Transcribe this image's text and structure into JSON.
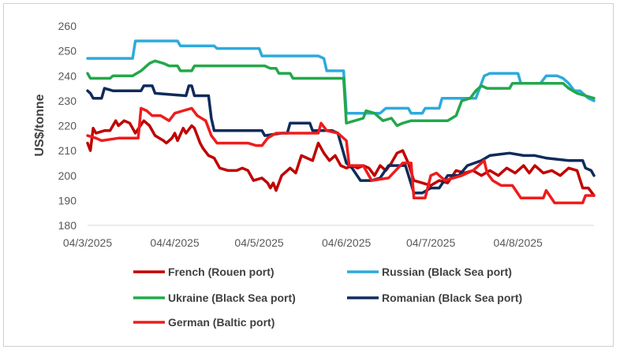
{
  "chart_data": {
    "type": "line",
    "ylabel": "US$/tonne",
    "xlabel": "",
    "title": "",
    "ylim": [
      180,
      260
    ],
    "y_ticks": [
      180,
      190,
      200,
      210,
      220,
      230,
      240,
      250,
      260
    ],
    "x_range": [
      "2025-03-04",
      "2025-08-31"
    ],
    "x_ticks": [
      {
        "date": "2025-03-04",
        "label": "04/3/2025"
      },
      {
        "date": "2025-04-04",
        "label": "04/4/2025"
      },
      {
        "date": "2025-05-04",
        "label": "04/5/2025"
      },
      {
        "date": "2025-06-04",
        "label": "04/6/2025"
      },
      {
        "date": "2025-07-04",
        "label": "04/7/2025"
      },
      {
        "date": "2025-08-04",
        "label": "04/8/2025"
      }
    ],
    "grid": false,
    "legend_position": "bottom",
    "series": [
      {
        "name": "French (Rouen port)",
        "color": "#C00000",
        "points": [
          [
            "2025-03-04",
            213
          ],
          [
            "2025-03-05",
            210
          ],
          [
            "2025-03-06",
            219
          ],
          [
            "2025-03-07",
            217
          ],
          [
            "2025-03-10",
            218
          ],
          [
            "2025-03-12",
            218
          ],
          [
            "2025-03-14",
            222
          ],
          [
            "2025-03-15",
            220
          ],
          [
            "2025-03-17",
            222
          ],
          [
            "2025-03-19",
            221
          ],
          [
            "2025-03-21",
            217
          ],
          [
            "2025-03-24",
            222
          ],
          [
            "2025-03-26",
            220
          ],
          [
            "2025-03-28",
            216
          ],
          [
            "2025-03-31",
            214
          ],
          [
            "2025-04-01",
            213
          ],
          [
            "2025-04-03",
            215
          ],
          [
            "2025-04-04",
            217
          ],
          [
            "2025-04-05",
            214
          ],
          [
            "2025-04-07",
            219
          ],
          [
            "2025-04-08",
            217
          ],
          [
            "2025-04-10",
            220
          ],
          [
            "2025-04-11",
            219
          ],
          [
            "2025-04-13",
            213
          ],
          [
            "2025-04-14",
            211
          ],
          [
            "2025-04-16",
            208
          ],
          [
            "2025-04-18",
            207
          ],
          [
            "2025-04-20",
            203
          ],
          [
            "2025-04-23",
            202
          ],
          [
            "2025-04-26",
            202
          ],
          [
            "2025-04-28",
            203
          ],
          [
            "2025-04-30",
            202
          ],
          [
            "2025-05-02",
            198
          ],
          [
            "2025-05-05",
            199
          ],
          [
            "2025-05-07",
            197
          ],
          [
            "2025-05-08",
            195
          ],
          [
            "2025-05-09",
            197
          ],
          [
            "2025-05-10",
            194
          ],
          [
            "2025-05-12",
            200
          ],
          [
            "2025-05-15",
            203
          ],
          [
            "2025-05-17",
            201
          ],
          [
            "2025-05-19",
            208
          ],
          [
            "2025-05-21",
            207
          ],
          [
            "2025-05-23",
            206
          ],
          [
            "2025-05-25",
            213
          ],
          [
            "2025-05-27",
            209
          ],
          [
            "2025-05-29",
            206
          ],
          [
            "2025-05-31",
            208
          ],
          [
            "2025-06-02",
            204
          ],
          [
            "2025-06-04",
            203
          ],
          [
            "2025-06-06",
            204
          ],
          [
            "2025-06-08",
            203
          ],
          [
            "2025-06-10",
            204
          ],
          [
            "2025-06-12",
            203
          ],
          [
            "2025-06-14",
            200
          ],
          [
            "2025-06-16",
            204
          ],
          [
            "2025-06-18",
            202
          ],
          [
            "2025-06-20",
            205
          ],
          [
            "2025-06-22",
            209
          ],
          [
            "2025-06-24",
            210
          ],
          [
            "2025-06-26",
            205
          ],
          [
            "2025-06-28",
            198
          ],
          [
            "2025-07-01",
            197
          ],
          [
            "2025-07-04",
            196
          ],
          [
            "2025-07-07",
            198
          ],
          [
            "2025-07-10",
            197
          ],
          [
            "2025-07-13",
            202
          ],
          [
            "2025-07-16",
            201
          ],
          [
            "2025-07-19",
            202
          ],
          [
            "2025-07-22",
            200
          ],
          [
            "2025-07-25",
            202
          ],
          [
            "2025-07-28",
            200
          ],
          [
            "2025-07-31",
            203
          ],
          [
            "2025-08-03",
            201
          ],
          [
            "2025-08-06",
            204
          ],
          [
            "2025-08-08",
            201
          ],
          [
            "2025-08-10",
            204
          ],
          [
            "2025-08-13",
            201
          ],
          [
            "2025-08-16",
            202
          ],
          [
            "2025-08-19",
            200
          ],
          [
            "2025-08-22",
            203
          ],
          [
            "2025-08-25",
            202
          ],
          [
            "2025-08-27",
            195
          ],
          [
            "2025-08-29",
            195
          ],
          [
            "2025-08-31",
            192
          ]
        ]
      },
      {
        "name": "Russian (Black Sea port)",
        "color": "#2EAADC",
        "points": [
          [
            "2025-03-04",
            247
          ],
          [
            "2025-03-20",
            247
          ],
          [
            "2025-03-21",
            254
          ],
          [
            "2025-04-05",
            254
          ],
          [
            "2025-04-06",
            252
          ],
          [
            "2025-04-18",
            252
          ],
          [
            "2025-04-19",
            251
          ],
          [
            "2025-05-04",
            251
          ],
          [
            "2025-05-05",
            248
          ],
          [
            "2025-05-25",
            248
          ],
          [
            "2025-05-27",
            247
          ],
          [
            "2025-05-28",
            242
          ],
          [
            "2025-06-03",
            242
          ],
          [
            "2025-06-04",
            225
          ],
          [
            "2025-06-16",
            225
          ],
          [
            "2025-06-18",
            227
          ],
          [
            "2025-06-26",
            227
          ],
          [
            "2025-06-27",
            225
          ],
          [
            "2025-07-01",
            225
          ],
          [
            "2025-07-02",
            227
          ],
          [
            "2025-07-07",
            227
          ],
          [
            "2025-07-08",
            231
          ],
          [
            "2025-07-20",
            231
          ],
          [
            "2025-07-23",
            240
          ],
          [
            "2025-07-25",
            241
          ],
          [
            "2025-08-04",
            241
          ],
          [
            "2025-08-05",
            237
          ],
          [
            "2025-08-12",
            237
          ],
          [
            "2025-08-14",
            240
          ],
          [
            "2025-08-18",
            240
          ],
          [
            "2025-08-20",
            239
          ],
          [
            "2025-08-22",
            237
          ],
          [
            "2025-08-24",
            234
          ],
          [
            "2025-08-26",
            234
          ],
          [
            "2025-08-29",
            231
          ],
          [
            "2025-08-31",
            230
          ]
        ]
      },
      {
        "name": "Ukraine (Black Sea port)",
        "color": "#22A84A",
        "points": [
          [
            "2025-03-04",
            241
          ],
          [
            "2025-03-05",
            239
          ],
          [
            "2025-03-12",
            239
          ],
          [
            "2025-03-13",
            240
          ],
          [
            "2025-03-20",
            240
          ],
          [
            "2025-03-23",
            242
          ],
          [
            "2025-03-26",
            245
          ],
          [
            "2025-03-28",
            246
          ],
          [
            "2025-03-31",
            245
          ],
          [
            "2025-04-02",
            244
          ],
          [
            "2025-04-05",
            244
          ],
          [
            "2025-04-06",
            242
          ],
          [
            "2025-04-10",
            242
          ],
          [
            "2025-04-11",
            244
          ],
          [
            "2025-05-06",
            244
          ],
          [
            "2025-05-08",
            243
          ],
          [
            "2025-05-10",
            243
          ],
          [
            "2025-05-11",
            241
          ],
          [
            "2025-05-15",
            241
          ],
          [
            "2025-05-16",
            239
          ],
          [
            "2025-06-03",
            239
          ],
          [
            "2025-06-04",
            221
          ],
          [
            "2025-06-07",
            222
          ],
          [
            "2025-06-10",
            223
          ],
          [
            "2025-06-11",
            226
          ],
          [
            "2025-06-14",
            225
          ],
          [
            "2025-06-17",
            222
          ],
          [
            "2025-06-20",
            223
          ],
          [
            "2025-06-22",
            220
          ],
          [
            "2025-06-24",
            221
          ],
          [
            "2025-06-27",
            222
          ],
          [
            "2025-07-10",
            222
          ],
          [
            "2025-07-13",
            224
          ],
          [
            "2025-07-15",
            230
          ],
          [
            "2025-07-18",
            231
          ],
          [
            "2025-07-20",
            234
          ],
          [
            "2025-07-22",
            236
          ],
          [
            "2025-07-24",
            235
          ],
          [
            "2025-08-01",
            235
          ],
          [
            "2025-08-02",
            237
          ],
          [
            "2025-08-20",
            237
          ],
          [
            "2025-08-22",
            235
          ],
          [
            "2025-08-25",
            233
          ],
          [
            "2025-08-28",
            232
          ],
          [
            "2025-08-31",
            231
          ]
        ]
      },
      {
        "name": "Romanian (Black Sea port)",
        "color": "#0F2B5B",
        "points": [
          [
            "2025-03-04",
            234
          ],
          [
            "2025-03-05",
            233
          ],
          [
            "2025-03-06",
            231
          ],
          [
            "2025-03-09",
            231
          ],
          [
            "2025-03-10",
            235
          ],
          [
            "2025-03-13",
            234
          ],
          [
            "2025-03-16",
            234
          ],
          [
            "2025-03-23",
            234
          ],
          [
            "2025-03-24",
            236
          ],
          [
            "2025-03-27",
            236
          ],
          [
            "2025-03-28",
            233
          ],
          [
            "2025-04-08",
            232
          ],
          [
            "2025-04-09",
            236
          ],
          [
            "2025-04-10",
            236
          ],
          [
            "2025-04-11",
            232
          ],
          [
            "2025-04-16",
            232
          ],
          [
            "2025-04-17",
            223
          ],
          [
            "2025-04-18",
            218
          ],
          [
            "2025-05-05",
            218
          ],
          [
            "2025-05-06",
            216
          ],
          [
            "2025-05-12",
            217
          ],
          [
            "2025-05-14",
            217
          ],
          [
            "2025-05-15",
            221
          ],
          [
            "2025-05-22",
            221
          ],
          [
            "2025-05-23",
            218
          ],
          [
            "2025-05-30",
            218
          ],
          [
            "2025-06-01",
            217
          ],
          [
            "2025-06-04",
            205
          ],
          [
            "2025-06-06",
            203
          ],
          [
            "2025-06-09",
            198
          ],
          [
            "2025-06-13",
            198
          ],
          [
            "2025-06-16",
            199
          ],
          [
            "2025-06-19",
            204
          ],
          [
            "2025-06-25",
            204
          ],
          [
            "2025-06-28",
            193
          ],
          [
            "2025-07-01",
            193
          ],
          [
            "2025-07-04",
            195
          ],
          [
            "2025-07-07",
            195
          ],
          [
            "2025-07-10",
            200
          ],
          [
            "2025-07-14",
            200
          ],
          [
            "2025-07-17",
            204
          ],
          [
            "2025-07-22",
            206
          ],
          [
            "2025-07-25",
            208
          ],
          [
            "2025-08-01",
            209
          ],
          [
            "2025-08-06",
            208
          ],
          [
            "2025-08-10",
            208
          ],
          [
            "2025-08-14",
            207
          ],
          [
            "2025-08-22",
            206
          ],
          [
            "2025-08-27",
            206
          ],
          [
            "2025-08-28",
            203
          ],
          [
            "2025-08-30",
            202
          ],
          [
            "2025-08-31",
            200
          ]
        ]
      },
      {
        "name": "German (Baltic port)",
        "color": "#EE1C1C",
        "points": [
          [
            "2025-03-04",
            216
          ],
          [
            "2025-03-07",
            215
          ],
          [
            "2025-03-09",
            214
          ],
          [
            "2025-03-15",
            215
          ],
          [
            "2025-03-22",
            215
          ],
          [
            "2025-03-23",
            227
          ],
          [
            "2025-03-25",
            226
          ],
          [
            "2025-03-27",
            224
          ],
          [
            "2025-03-30",
            224
          ],
          [
            "2025-04-02",
            222
          ],
          [
            "2025-04-04",
            225
          ],
          [
            "2025-04-07",
            226
          ],
          [
            "2025-04-10",
            227
          ],
          [
            "2025-04-12",
            224
          ],
          [
            "2025-04-15",
            222
          ],
          [
            "2025-04-17",
            216
          ],
          [
            "2025-04-19",
            213
          ],
          [
            "2025-04-30",
            213
          ],
          [
            "2025-05-03",
            212
          ],
          [
            "2025-05-05",
            212
          ],
          [
            "2025-05-07",
            215
          ],
          [
            "2025-05-10",
            217
          ],
          [
            "2025-05-25",
            217
          ],
          [
            "2025-05-26",
            221
          ],
          [
            "2025-05-28",
            218
          ],
          [
            "2025-06-01",
            217
          ],
          [
            "2025-06-04",
            214
          ],
          [
            "2025-06-05",
            204
          ],
          [
            "2025-06-10",
            204
          ],
          [
            "2025-06-13",
            198
          ],
          [
            "2025-06-19",
            199
          ],
          [
            "2025-06-24",
            205
          ],
          [
            "2025-06-27",
            205
          ],
          [
            "2025-06-28",
            191
          ],
          [
            "2025-07-02",
            191
          ],
          [
            "2025-07-04",
            200
          ],
          [
            "2025-07-06",
            201
          ],
          [
            "2025-07-09",
            198
          ],
          [
            "2025-07-12",
            199
          ],
          [
            "2025-07-15",
            200
          ],
          [
            "2025-07-19",
            202
          ],
          [
            "2025-07-23",
            206
          ],
          [
            "2025-07-24",
            201
          ],
          [
            "2025-07-26",
            198
          ],
          [
            "2025-07-29",
            196
          ],
          [
            "2025-08-02",
            196
          ],
          [
            "2025-08-05",
            191
          ],
          [
            "2025-08-13",
            191
          ],
          [
            "2025-08-14",
            194
          ],
          [
            "2025-08-17",
            189
          ],
          [
            "2025-08-24",
            189
          ],
          [
            "2025-08-27",
            189
          ],
          [
            "2025-08-28",
            192
          ],
          [
            "2025-08-31",
            192
          ]
        ]
      }
    ]
  }
}
